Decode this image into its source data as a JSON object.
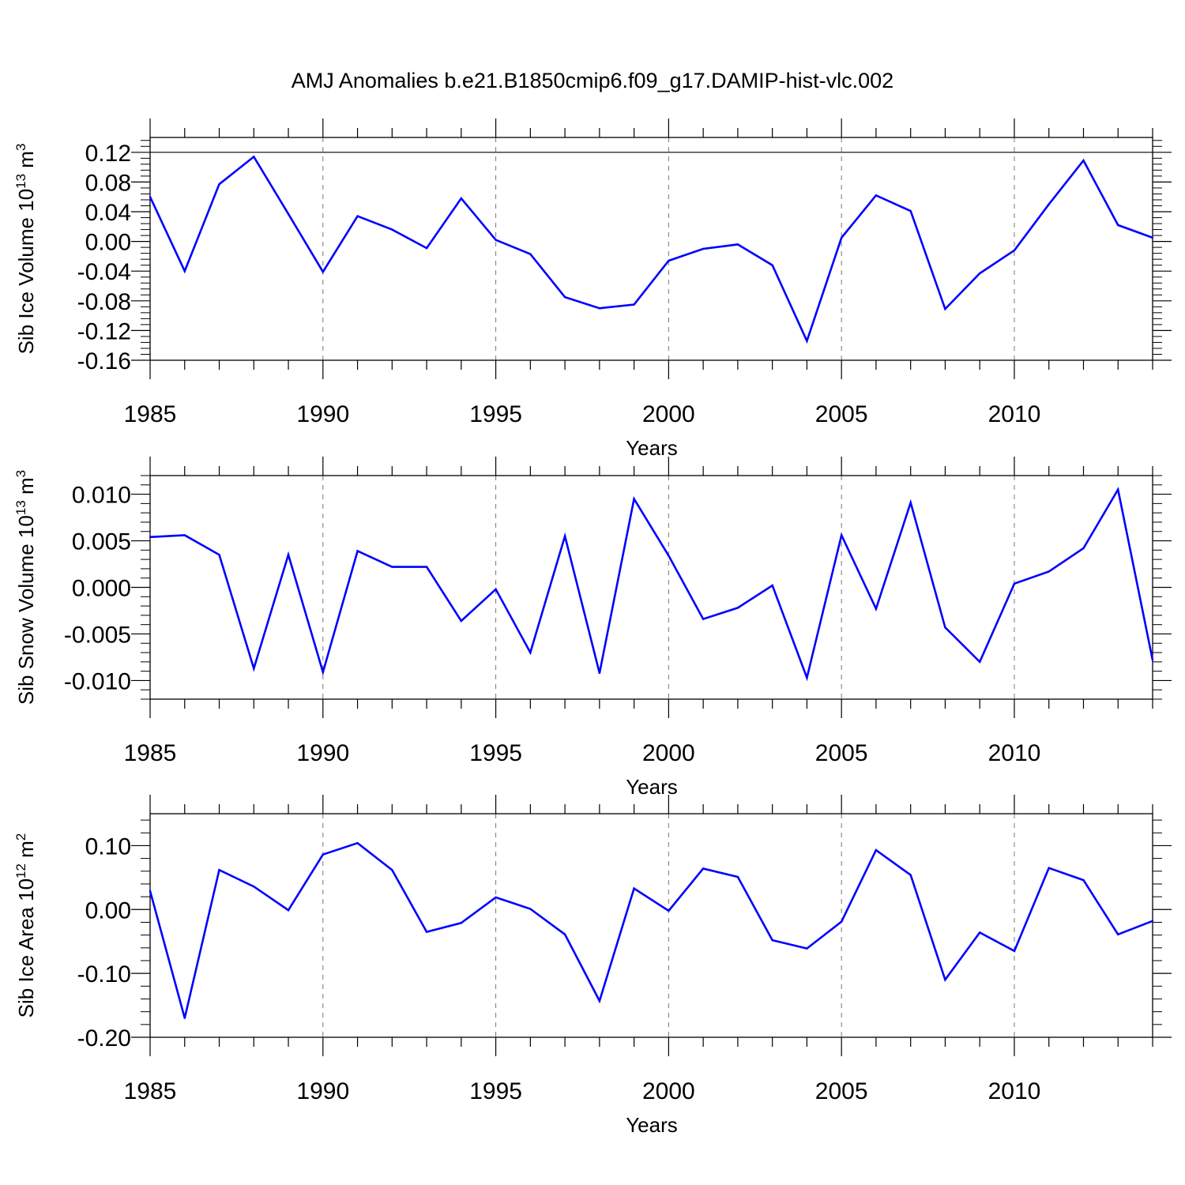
{
  "title": "AMJ Anomalies b.e21.B1850cmip6.f09_g17.DAMIP-hist-vlc.002",
  "line_color": "#0000ff",
  "chart_data": [
    {
      "type": "line",
      "ylabel": "Sib Ice Volume 10",
      "ylabel_exp": "13",
      "ylabel_unit": " m",
      "ylabel_unit_exp": "3",
      "xlabel": "Years",
      "xlim": [
        1985,
        2014
      ],
      "ylim": [
        -0.16,
        0.14
      ],
      "yticks": [
        0.12,
        0.08,
        0.04,
        0.0,
        -0.04,
        -0.08,
        -0.12,
        -0.16
      ],
      "ytick_labels": [
        "0.12",
        "0.08",
        "0.04",
        "0.00",
        "-0.04",
        "-0.08",
        "-0.12",
        "-0.16"
      ],
      "xticks": [
        1985,
        1990,
        1995,
        2000,
        2005,
        2010
      ],
      "xtick_labels": [
        "1985",
        "1990",
        "1995",
        "2000",
        "2005",
        "2010"
      ],
      "ref_line": 0.12,
      "x": [
        1985,
        1986,
        1987,
        1988,
        1989,
        1990,
        1991,
        1992,
        1993,
        1994,
        1995,
        1996,
        1997,
        1998,
        1999,
        2000,
        2001,
        2002,
        2003,
        2004,
        2005,
        2006,
        2007,
        2008,
        2009,
        2010,
        2011,
        2012,
        2013,
        2014
      ],
      "series": [
        {
          "values": [
            0.06,
            -0.04,
            0.077,
            0.114,
            0.037,
            -0.041,
            0.034,
            0.016,
            -0.009,
            0.058,
            0.002,
            -0.017,
            -0.075,
            -0.09,
            -0.085,
            -0.026,
            -0.01,
            -0.004,
            -0.032,
            -0.134,
            0.005,
            0.062,
            0.041,
            -0.091,
            -0.043,
            -0.012,
            0.05,
            0.109,
            0.022,
            0.005
          ]
        }
      ]
    },
    {
      "type": "line",
      "ylabel": "Sib Snow Volume 10",
      "ylabel_exp": "13",
      "ylabel_unit": " m",
      "ylabel_unit_exp": "3",
      "xlabel": "Years",
      "xlim": [
        1985,
        2014
      ],
      "ylim": [
        -0.012,
        0.012
      ],
      "yticks": [
        0.01,
        0.005,
        0.0,
        -0.005,
        -0.01
      ],
      "ytick_labels": [
        "0.010",
        "0.005",
        "0.000",
        "-0.005",
        "-0.010"
      ],
      "xticks": [
        1985,
        1990,
        1995,
        2000,
        2005,
        2010
      ],
      "xtick_labels": [
        "1985",
        "1990",
        "1995",
        "2000",
        "2005",
        "2010"
      ],
      "x": [
        1985,
        1986,
        1987,
        1988,
        1989,
        1990,
        1991,
        1992,
        1993,
        1994,
        1995,
        1996,
        1997,
        1998,
        1999,
        2000,
        2001,
        2002,
        2003,
        2004,
        2005,
        2006,
        2007,
        2008,
        2009,
        2010,
        2011,
        2012,
        2013,
        2014
      ],
      "series": [
        {
          "values": [
            0.0054,
            0.0056,
            0.0035,
            -0.0087,
            0.0035,
            -0.0091,
            0.0039,
            0.0022,
            0.0022,
            -0.0036,
            -0.0002,
            -0.007,
            0.0055,
            -0.0092,
            0.0095,
            0.0034,
            -0.0034,
            -0.0022,
            0.0002,
            -0.0097,
            0.0056,
            -0.0023,
            0.0091,
            -0.0043,
            -0.008,
            0.0004,
            0.0017,
            0.0042,
            0.0105,
            -0.0078
          ]
        }
      ]
    },
    {
      "type": "line",
      "ylabel": "Sib Ice Area 10",
      "ylabel_exp": "12",
      "ylabel_unit": " m",
      "ylabel_unit_exp": "2",
      "xlabel": "Years",
      "xlim": [
        1985,
        2014
      ],
      "ylim": [
        -0.2,
        0.15
      ],
      "yticks": [
        0.1,
        0.0,
        -0.1,
        -0.2
      ],
      "ytick_labels": [
        "0.10",
        "0.00",
        "-0.10",
        "-0.20"
      ],
      "xticks": [
        1985,
        1990,
        1995,
        2000,
        2005,
        2010
      ],
      "xtick_labels": [
        "1985",
        "1990",
        "1995",
        "2000",
        "2005",
        "2010"
      ],
      "x": [
        1985,
        1986,
        1987,
        1988,
        1989,
        1990,
        1991,
        1992,
        1993,
        1994,
        1995,
        1996,
        1997,
        1998,
        1999,
        2000,
        2001,
        2002,
        2003,
        2004,
        2005,
        2006,
        2007,
        2008,
        2009,
        2010,
        2011,
        2012,
        2013,
        2014
      ],
      "series": [
        {
          "values": [
            0.029,
            -0.17,
            0.062,
            0.036,
            -0.001,
            0.086,
            0.104,
            0.062,
            -0.035,
            -0.021,
            0.019,
            0.001,
            -0.039,
            -0.143,
            0.033,
            -0.002,
            0.064,
            0.051,
            -0.048,
            -0.061,
            -0.019,
            0.093,
            0.054,
            -0.11,
            -0.036,
            -0.065,
            0.065,
            0.046,
            -0.039,
            -0.018
          ]
        }
      ]
    }
  ]
}
